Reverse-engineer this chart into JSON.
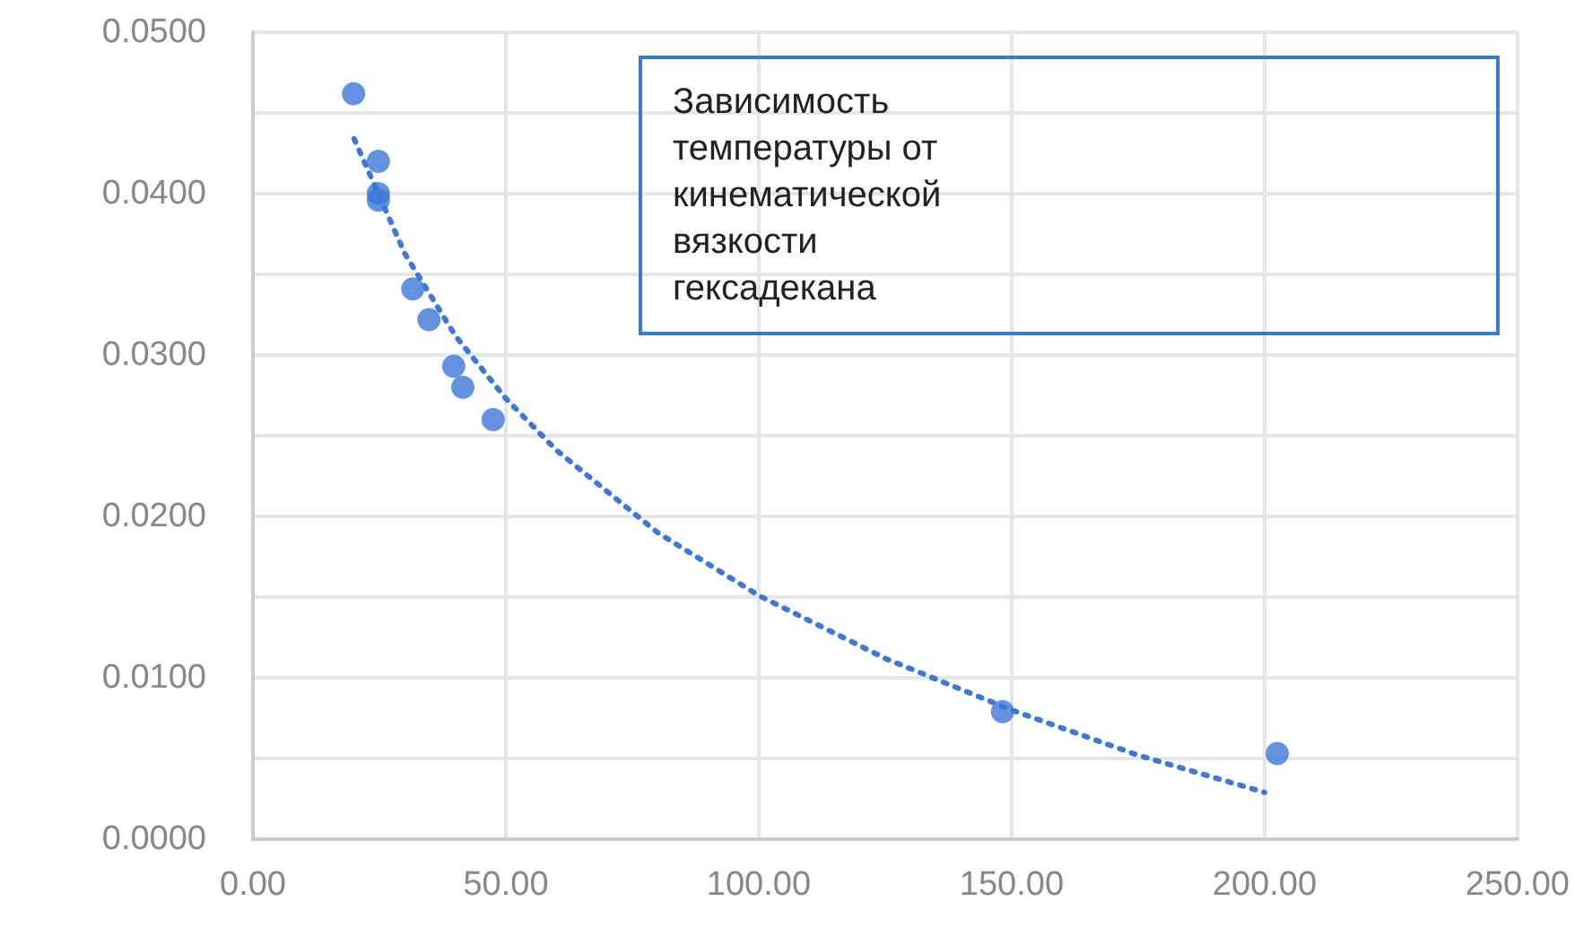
{
  "chart_data": {
    "type": "scatter",
    "title": "Зависимость температуры от кинематической вязкости гексадекана",
    "xlim": [
      0,
      250
    ],
    "ylim": [
      0,
      0.05
    ],
    "xticks": [
      {
        "value": 0,
        "label": "0.00"
      },
      {
        "value": 50,
        "label": "50.00"
      },
      {
        "value": 100,
        "label": "100.00"
      },
      {
        "value": 150,
        "label": "150.00"
      },
      {
        "value": 200,
        "label": "200.00"
      },
      {
        "value": 250,
        "label": "250.00"
      }
    ],
    "yticks": [
      {
        "value": 0,
        "label": "0.0000"
      },
      {
        "value": 0.01,
        "label": "0.0100"
      },
      {
        "value": 0.02,
        "label": "0.0200"
      },
      {
        "value": 0.03,
        "label": "0.0300"
      },
      {
        "value": 0.04,
        "label": "0.0400"
      },
      {
        "value": 0.05,
        "label": "0.0500"
      }
    ],
    "grid": true,
    "series": [
      {
        "color": "#3c78d8",
        "marker": "circle",
        "x": [
          19.9,
          24.8,
          24.8,
          24.8,
          31.6,
          34.8,
          39.7,
          41.5,
          47.5,
          148.2,
          202.5
        ],
        "values": [
          0.0462,
          0.042,
          0.04,
          0.0396,
          0.0341,
          0.0322,
          0.0293,
          0.028,
          0.026,
          0.0079,
          0.0053
        ]
      },
      {
        "type": "line",
        "color": "#3c78d8",
        "marker": "none",
        "line_style": "dotted",
        "x": [
          20,
          30,
          40,
          50,
          60,
          80,
          100,
          125,
          150,
          175,
          200
        ],
        "values": [
          0.0434,
          0.0363,
          0.0312,
          0.0273,
          0.0241,
          0.019,
          0.0151,
          0.0112,
          0.008,
          0.0052,
          0.0029
        ]
      }
    ]
  }
}
